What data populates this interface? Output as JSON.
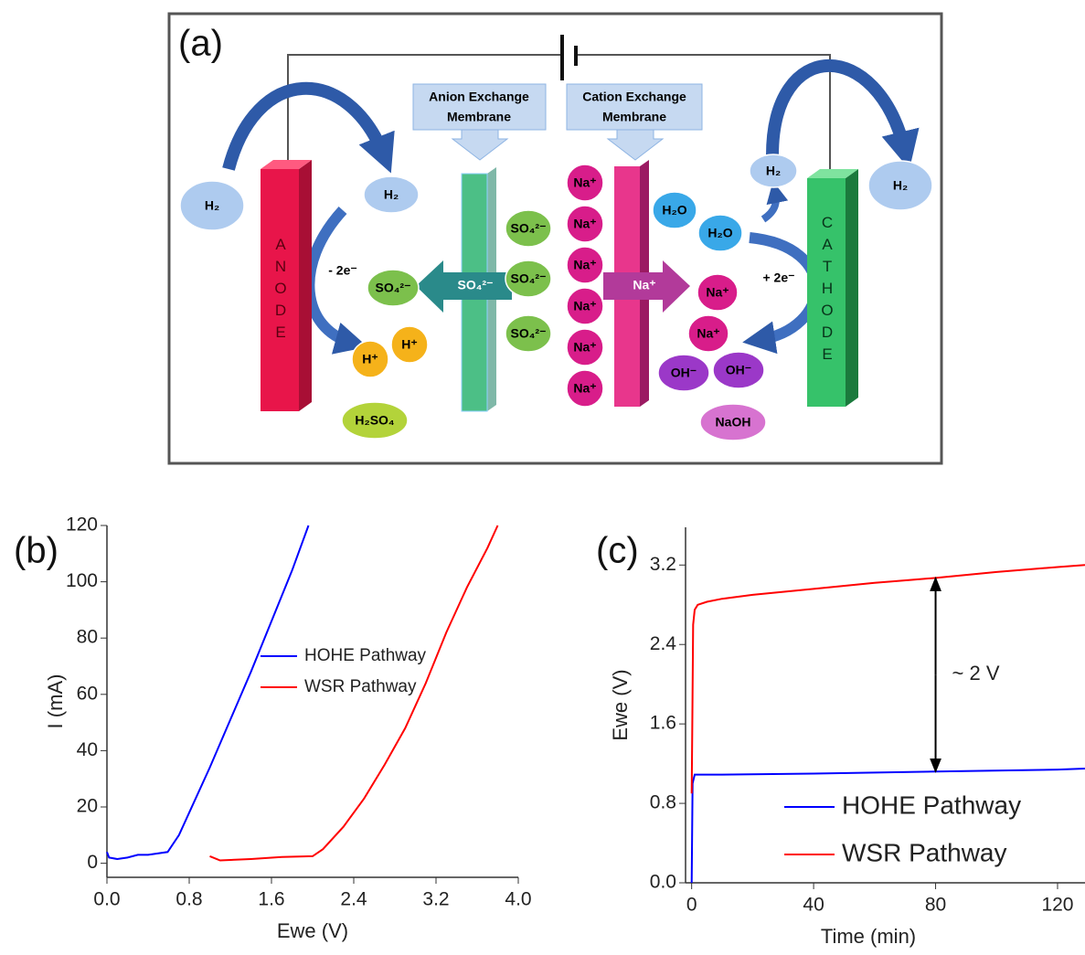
{
  "diagram": {
    "panel": "(a)",
    "membranes": [
      [
        "Anion Exchange",
        "Membrane"
      ],
      [
        "Cation Exchange",
        "Membrane"
      ]
    ],
    "electrodes": [
      "ANODE",
      "CATHODE"
    ],
    "nodes": [
      {
        "label": "H₂"
      },
      {
        "label": "H₂"
      },
      {
        "label": "H₂"
      },
      {
        "label": "H₂"
      },
      {
        "label": "SO₄²⁻"
      },
      {
        "label": "H⁺"
      },
      {
        "label": "H⁺"
      },
      {
        "label": "H₂SO₄"
      },
      {
        "label": "SO₄²⁻"
      },
      {
        "label": "SO₄²⁻"
      },
      {
        "label": "SO₄²⁻"
      },
      {
        "label": "Na⁺"
      },
      {
        "label": "Na⁺"
      },
      {
        "label": "Na⁺"
      },
      {
        "label": "Na⁺"
      },
      {
        "label": "Na⁺"
      },
      {
        "label": "Na⁺"
      },
      {
        "label": "Na⁺"
      },
      {
        "label": "Na⁺"
      },
      {
        "label": "H₂O"
      },
      {
        "label": "H₂O"
      },
      {
        "label": "OH⁻"
      },
      {
        "label": "OH⁻"
      },
      {
        "label": "NaOH"
      }
    ],
    "arrow_labels": [
      "SO₄²⁻",
      "Na⁺"
    ],
    "electron_labels": [
      "- 2e⁻",
      "+ 2e⁻"
    ]
  },
  "chart_data": [
    {
      "type": "line",
      "panel_label": "(b)",
      "x_label": "Ewe (V)",
      "y_label": "I (mA)",
      "xlim": [
        0,
        4
      ],
      "xticks": [
        {
          "value": 0,
          "label": "0.0"
        },
        0.8,
        1.6,
        2.4,
        3.2,
        {
          "value": 4,
          "label": "4.0"
        }
      ],
      "ylim": [
        -5,
        120
      ],
      "yticks": [
        0,
        20,
        40,
        60,
        80,
        100,
        120
      ],
      "legend": "center",
      "series": [
        {
          "name": "HOHE Pathway",
          "color": "#0000ff",
          "x": [
            0,
            0.02,
            0.1,
            0.2,
            0.3,
            0.4,
            0.5,
            0.59,
            0.7,
            0.8,
            1.0,
            1.2,
            1.4,
            1.6,
            1.8,
            1.96
          ],
          "values": [
            4,
            2,
            1.5,
            2,
            3,
            3,
            3.5,
            4,
            10,
            18,
            34,
            51,
            68,
            86,
            104,
            120
          ]
        },
        {
          "name": "WSR Pathway",
          "color": "#ff0000",
          "x": [
            1.0,
            1.1,
            1.4,
            1.7,
            2.0,
            2.1,
            2.3,
            2.5,
            2.7,
            2.9,
            3.1,
            3.3,
            3.5,
            3.7,
            3.8
          ],
          "values": [
            2.5,
            1,
            1.5,
            2.2,
            2.5,
            5,
            13,
            23,
            35,
            48,
            64,
            82,
            98,
            112,
            120
          ]
        }
      ]
    },
    {
      "type": "line",
      "panel_label": "(c)",
      "x_label": "Time (min)",
      "y_label": "Ewe (V)",
      "xlim": [
        -2,
        129
      ],
      "xticks": [
        0,
        40,
        80,
        120
      ],
      "ylim": [
        0,
        3.58
      ],
      "yticks": [
        {
          "value": 0,
          "label": "0.0"
        },
        0.8,
        1.6,
        2.4,
        3.2
      ],
      "legend": "lower right",
      "annotation": "~ 2 V",
      "series": [
        {
          "name": "HOHE Pathway",
          "color": "#0000ff",
          "x": [
            0,
            0.3,
            1,
            10,
            40,
            80,
            120,
            129
          ],
          "values": [
            0,
            1.0,
            1.09,
            1.09,
            1.1,
            1.12,
            1.14,
            1.15
          ]
        },
        {
          "name": "WSR Pathway",
          "color": "#ff0000",
          "x": [
            0,
            0.2,
            0.5,
            1,
            2,
            5,
            10,
            20,
            40,
            60,
            80,
            100,
            120,
            129
          ],
          "values": [
            0.9,
            1.5,
            2.6,
            2.75,
            2.8,
            2.83,
            2.86,
            2.9,
            2.96,
            3.02,
            3.07,
            3.13,
            3.18,
            3.2
          ]
        }
      ]
    }
  ]
}
